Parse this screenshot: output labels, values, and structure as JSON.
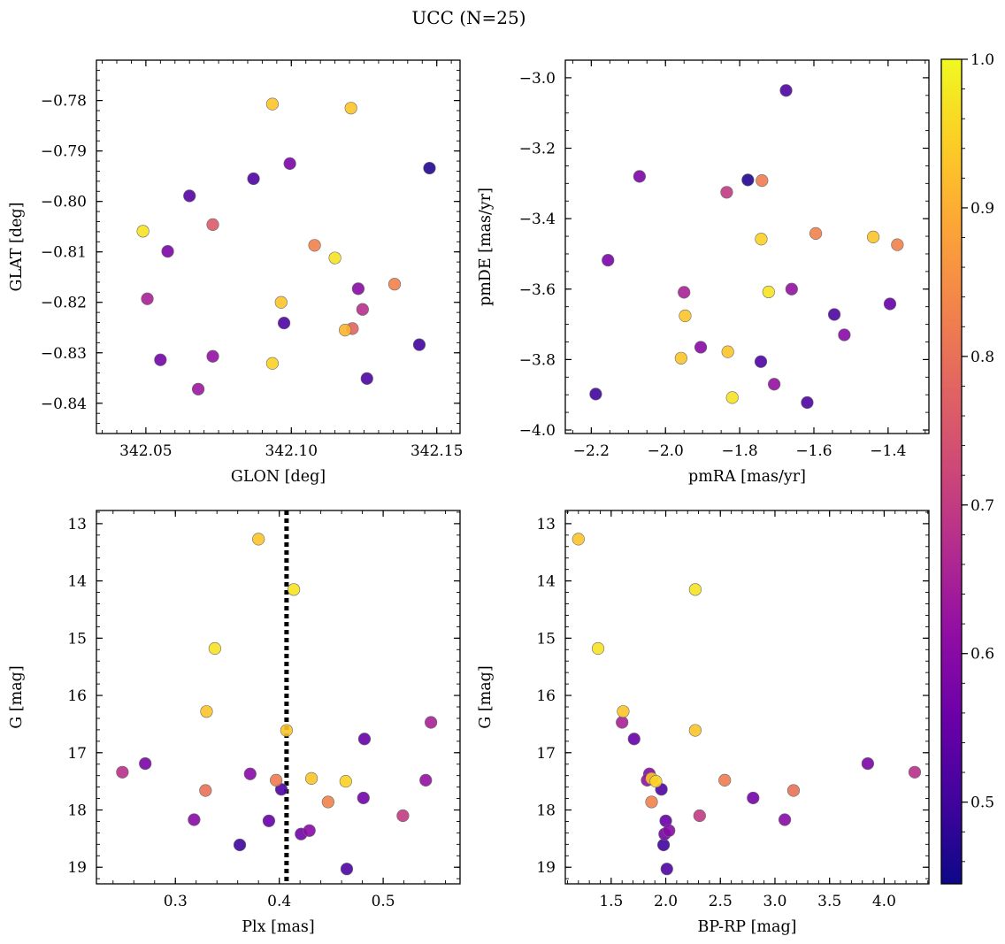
{
  "title": "UCC (N=25)",
  "colorbar": {
    "colormap": "plasma",
    "range": [
      0.445,
      1.0
    ],
    "ticks": [
      0.5,
      0.6,
      0.7,
      0.8,
      0.9,
      1.0
    ],
    "tick_labels": [
      "0.5",
      "0.6",
      "0.7",
      "0.8",
      "0.9",
      "1.0"
    ]
  },
  "chart_data": [
    {
      "type": "scatter",
      "panel": "top-left",
      "xlabel": "GLON [deg]",
      "ylabel": "GLAT [deg]",
      "xlim": [
        342.033,
        342.158
      ],
      "ylim": [
        -0.846,
        -0.772
      ],
      "y_inverted": false,
      "xticks": [
        342.05,
        342.1,
        342.15
      ],
      "xtick_labels": [
        "342.05",
        "342.10",
        "342.15"
      ],
      "yticks": [
        -0.78,
        -0.79,
        -0.8,
        -0.81,
        -0.82,
        -0.83,
        -0.84
      ],
      "ytick_labels": [
        "−0.78",
        "−0.79",
        "−0.80",
        "−0.81",
        "−0.82",
        "−0.83",
        "−0.84"
      ],
      "x_minor_step": 0.005,
      "y_minor_step": 0.002,
      "points": [
        {
          "x": 342.0935,
          "y": -0.7807,
          "c": 0.93
        },
        {
          "x": 342.1205,
          "y": -0.7815,
          "c": 0.93
        },
        {
          "x": 342.0995,
          "y": -0.7925,
          "c": 0.58
        },
        {
          "x": 342.1475,
          "y": -0.7934,
          "c": 0.47
        },
        {
          "x": 342.087,
          "y": -0.7955,
          "c": 0.52
        },
        {
          "x": 342.065,
          "y": -0.7989,
          "c": 0.53
        },
        {
          "x": 342.073,
          "y": -0.8046,
          "c": 0.76
        },
        {
          "x": 342.049,
          "y": -0.8059,
          "c": 0.97
        },
        {
          "x": 342.108,
          "y": -0.8087,
          "c": 0.83
        },
        {
          "x": 342.0575,
          "y": -0.8099,
          "c": 0.58
        },
        {
          "x": 342.115,
          "y": -0.8112,
          "c": 0.97
        },
        {
          "x": 342.1355,
          "y": -0.8164,
          "c": 0.83
        },
        {
          "x": 342.123,
          "y": -0.8173,
          "c": 0.6
        },
        {
          "x": 342.0505,
          "y": -0.8193,
          "c": 0.65
        },
        {
          "x": 342.0965,
          "y": -0.82,
          "c": 0.93
        },
        {
          "x": 342.1245,
          "y": -0.8214,
          "c": 0.68
        },
        {
          "x": 342.0975,
          "y": -0.8241,
          "c": 0.52
        },
        {
          "x": 342.121,
          "y": -0.8252,
          "c": 0.78
        },
        {
          "x": 342.1185,
          "y": -0.8255,
          "c": 0.91
        },
        {
          "x": 342.144,
          "y": -0.8284,
          "c": 0.5
        },
        {
          "x": 342.073,
          "y": -0.8307,
          "c": 0.62
        },
        {
          "x": 342.055,
          "y": -0.8314,
          "c": 0.57
        },
        {
          "x": 342.0935,
          "y": -0.8321,
          "c": 0.95
        },
        {
          "x": 342.126,
          "y": -0.8351,
          "c": 0.52
        },
        {
          "x": 342.068,
          "y": -0.8372,
          "c": 0.63
        }
      ]
    },
    {
      "type": "scatter",
      "panel": "top-right",
      "xlabel": "pmRA [mas/yr]",
      "ylabel": "pmDE [mas/yr]",
      "xlim": [
        -2.27,
        -1.29
      ],
      "ylim": [
        -4.01,
        -2.95
      ],
      "y_inverted": false,
      "xticks": [
        -2.2,
        -2.0,
        -1.8,
        -1.6,
        -1.4
      ],
      "xtick_labels": [
        "−2.2",
        "−2.0",
        "−1.8",
        "−1.6",
        "−1.4"
      ],
      "yticks": [
        -3.0,
        -3.2,
        -3.4,
        -3.6,
        -3.8,
        -4.0
      ],
      "ytick_labels": [
        "−3.0",
        "−3.2",
        "−3.4",
        "−3.6",
        "−3.8",
        "−4.0"
      ],
      "x_minor_step": 0.05,
      "y_minor_step": 0.05,
      "points": [
        {
          "x": -1.675,
          "y": -3.036,
          "c": 0.52
        },
        {
          "x": -2.07,
          "y": -3.28,
          "c": 0.58
        },
        {
          "x": -1.778,
          "y": -3.29,
          "c": 0.47
        },
        {
          "x": -1.74,
          "y": -3.292,
          "c": 0.82
        },
        {
          "x": -1.835,
          "y": -3.325,
          "c": 0.7
        },
        {
          "x": -1.595,
          "y": -3.442,
          "c": 0.83
        },
        {
          "x": -1.44,
          "y": -3.452,
          "c": 0.93
        },
        {
          "x": -1.742,
          "y": -3.458,
          "c": 0.95
        },
        {
          "x": -1.375,
          "y": -3.474,
          "c": 0.83
        },
        {
          "x": -2.155,
          "y": -3.518,
          "c": 0.58
        },
        {
          "x": -1.66,
          "y": -3.6,
          "c": 0.62
        },
        {
          "x": -1.722,
          "y": -3.608,
          "c": 0.97
        },
        {
          "x": -1.95,
          "y": -3.609,
          "c": 0.65
        },
        {
          "x": -1.395,
          "y": -3.642,
          "c": 0.55
        },
        {
          "x": -1.545,
          "y": -3.672,
          "c": 0.52
        },
        {
          "x": -1.947,
          "y": -3.676,
          "c": 0.93
        },
        {
          "x": -1.518,
          "y": -3.73,
          "c": 0.6
        },
        {
          "x": -1.905,
          "y": -3.765,
          "c": 0.6
        },
        {
          "x": -1.832,
          "y": -3.778,
          "c": 0.93
        },
        {
          "x": -1.958,
          "y": -3.796,
          "c": 0.93
        },
        {
          "x": -1.743,
          "y": -3.806,
          "c": 0.52
        },
        {
          "x": -1.707,
          "y": -3.87,
          "c": 0.62
        },
        {
          "x": -2.188,
          "y": -3.898,
          "c": 0.5
        },
        {
          "x": -1.82,
          "y": -3.908,
          "c": 0.97
        },
        {
          "x": -1.618,
          "y": -3.922,
          "c": 0.52
        }
      ]
    },
    {
      "type": "scatter",
      "panel": "bottom-left",
      "xlabel": "Plx [mas]",
      "ylabel": "G [mag]",
      "xlim": [
        0.224,
        0.574
      ],
      "ylim": [
        19.29,
        12.77
      ],
      "y_inverted": true,
      "xticks": [
        0.3,
        0.4,
        0.5
      ],
      "xtick_labels": [
        "0.3",
        "0.4",
        "0.5"
      ],
      "yticks": [
        13,
        14,
        15,
        16,
        17,
        18,
        19
      ],
      "ytick_labels": [
        "13",
        "14",
        "15",
        "16",
        "17",
        "18",
        "19"
      ],
      "x_minor_step": 0.02,
      "y_minor_step": 0.2,
      "vline": {
        "x": 0.407,
        "style": "dotted"
      },
      "points": [
        {
          "x": 0.38,
          "y": 13.27,
          "c": 0.93
        },
        {
          "x": 0.414,
          "y": 14.15,
          "c": 0.97
        },
        {
          "x": 0.338,
          "y": 15.18,
          "c": 0.97
        },
        {
          "x": 0.33,
          "y": 16.28,
          "c": 0.93
        },
        {
          "x": 0.546,
          "y": 16.47,
          "c": 0.65
        },
        {
          "x": 0.407,
          "y": 16.61,
          "c": 0.93
        },
        {
          "x": 0.482,
          "y": 16.76,
          "c": 0.55
        },
        {
          "x": 0.271,
          "y": 17.19,
          "c": 0.58
        },
        {
          "x": 0.249,
          "y": 17.34,
          "c": 0.68
        },
        {
          "x": 0.372,
          "y": 17.37,
          "c": 0.6
        },
        {
          "x": 0.431,
          "y": 17.45,
          "c": 0.93
        },
        {
          "x": 0.397,
          "y": 17.48,
          "c": 0.82
        },
        {
          "x": 0.541,
          "y": 17.48,
          "c": 0.62
        },
        {
          "x": 0.464,
          "y": 17.5,
          "c": 0.95
        },
        {
          "x": 0.402,
          "y": 17.64,
          "c": 0.52
        },
        {
          "x": 0.329,
          "y": 17.66,
          "c": 0.8
        },
        {
          "x": 0.481,
          "y": 17.79,
          "c": 0.57
        },
        {
          "x": 0.447,
          "y": 17.86,
          "c": 0.83
        },
        {
          "x": 0.519,
          "y": 18.1,
          "c": 0.7
        },
        {
          "x": 0.318,
          "y": 18.17,
          "c": 0.6
        },
        {
          "x": 0.39,
          "y": 18.19,
          "c": 0.55
        },
        {
          "x": 0.429,
          "y": 18.36,
          "c": 0.6
        },
        {
          "x": 0.421,
          "y": 18.42,
          "c": 0.57
        },
        {
          "x": 0.362,
          "y": 18.61,
          "c": 0.5
        },
        {
          "x": 0.465,
          "y": 19.03,
          "c": 0.52
        }
      ]
    },
    {
      "type": "scatter",
      "panel": "bottom-right",
      "xlabel": "BP-RP [mag]",
      "ylabel": "G [mag]",
      "xlim": [
        1.08,
        4.41
      ],
      "ylim": [
        19.29,
        12.77
      ],
      "y_inverted": true,
      "xticks": [
        1.5,
        2.0,
        2.5,
        3.0,
        3.5,
        4.0
      ],
      "xtick_labels": [
        "1.5",
        "2.0",
        "2.5",
        "3.0",
        "3.5",
        "4.0"
      ],
      "x_minor_step": 0.1,
      "y_minor_step": 0.2,
      "yticks": [
        13,
        14,
        15,
        16,
        17,
        18,
        19
      ],
      "ytick_labels": [
        "13",
        "14",
        "15",
        "16",
        "17",
        "18",
        "19"
      ],
      "points": [
        {
          "x": 1.2,
          "y": 13.27,
          "c": 0.93
        },
        {
          "x": 2.27,
          "y": 14.15,
          "c": 0.97
        },
        {
          "x": 1.38,
          "y": 15.18,
          "c": 0.97
        },
        {
          "x": 1.61,
          "y": 16.28,
          "c": 0.93
        },
        {
          "x": 1.6,
          "y": 16.47,
          "c": 0.65
        },
        {
          "x": 2.27,
          "y": 16.61,
          "c": 0.93
        },
        {
          "x": 1.71,
          "y": 16.76,
          "c": 0.55
        },
        {
          "x": 3.85,
          "y": 17.19,
          "c": 0.58
        },
        {
          "x": 4.28,
          "y": 17.34,
          "c": 0.68
        },
        {
          "x": 1.85,
          "y": 17.37,
          "c": 0.6
        },
        {
          "x": 1.87,
          "y": 17.45,
          "c": 0.93
        },
        {
          "x": 2.54,
          "y": 17.48,
          "c": 0.82
        },
        {
          "x": 1.83,
          "y": 17.48,
          "c": 0.62
        },
        {
          "x": 1.91,
          "y": 17.5,
          "c": 0.95
        },
        {
          "x": 1.96,
          "y": 17.64,
          "c": 0.52
        },
        {
          "x": 3.17,
          "y": 17.66,
          "c": 0.8
        },
        {
          "x": 2.8,
          "y": 17.79,
          "c": 0.57
        },
        {
          "x": 1.87,
          "y": 17.86,
          "c": 0.83
        },
        {
          "x": 2.31,
          "y": 18.1,
          "c": 0.7
        },
        {
          "x": 3.09,
          "y": 18.17,
          "c": 0.6
        },
        {
          "x": 2.0,
          "y": 18.19,
          "c": 0.55
        },
        {
          "x": 2.03,
          "y": 18.36,
          "c": 0.6
        },
        {
          "x": 1.99,
          "y": 18.42,
          "c": 0.57
        },
        {
          "x": 1.98,
          "y": 18.61,
          "c": 0.5
        },
        {
          "x": 2.01,
          "y": 19.03,
          "c": 0.52
        }
      ]
    }
  ]
}
